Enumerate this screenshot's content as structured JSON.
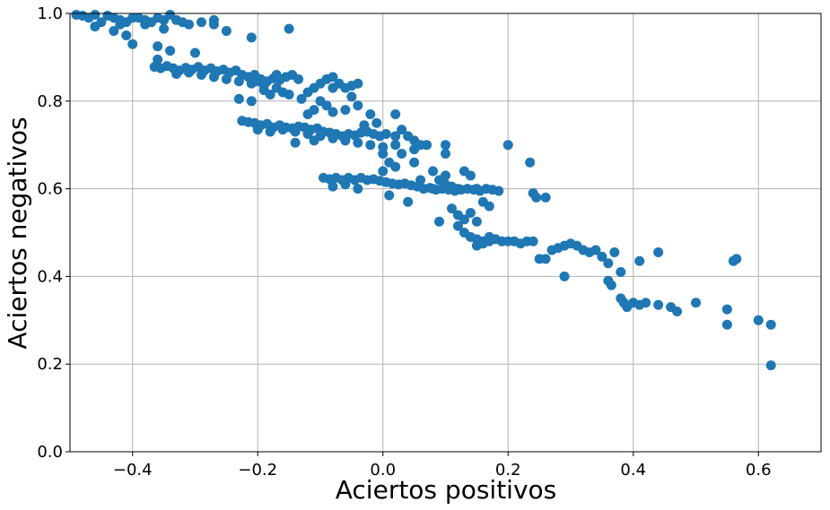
{
  "chart_data": {
    "type": "scatter",
    "title": "",
    "xlabel": "Aciertos positivos",
    "ylabel": "Aciertos negativos",
    "xlim": [
      -0.5,
      0.7
    ],
    "ylim": [
      0.0,
      1.0
    ],
    "grid": true,
    "x_ticks": [
      "−0.4",
      "−0.2",
      "0.0",
      "0.2",
      "0.4",
      "0.6"
    ],
    "y_ticks": [
      "0.0",
      "0.2",
      "0.4",
      "0.6",
      "0.8",
      "1.0"
    ],
    "x_tick_values": [
      -0.4,
      -0.2,
      0.0,
      0.2,
      0.4,
      0.6
    ],
    "y_tick_values": [
      0.0,
      0.2,
      0.4,
      0.6,
      0.8,
      1.0
    ],
    "marker_color": "#1f77b4",
    "series": [
      {
        "points": [
          [
            -0.49,
            0.997
          ],
          [
            -0.48,
            0.995
          ],
          [
            -0.47,
            0.99
          ],
          [
            -0.46,
            0.997
          ],
          [
            -0.45,
            0.98
          ],
          [
            -0.44,
            0.995
          ],
          [
            -0.43,
            0.99
          ],
          [
            -0.42,
            0.985
          ],
          [
            -0.41,
            0.98
          ],
          [
            -0.4,
            0.99
          ],
          [
            -0.39,
            0.99
          ],
          [
            -0.38,
            0.985
          ],
          [
            -0.37,
            0.98
          ],
          [
            -0.36,
            0.99
          ],
          [
            -0.35,
            0.985
          ],
          [
            -0.34,
            0.997
          ],
          [
            -0.33,
            0.985
          ],
          [
            -0.32,
            0.98
          ],
          [
            -0.46,
            0.97
          ],
          [
            -0.43,
            0.96
          ],
          [
            -0.42,
            0.975
          ],
          [
            -0.41,
            0.95
          ],
          [
            -0.4,
            0.93
          ],
          [
            -0.38,
            0.975
          ],
          [
            -0.35,
            0.965
          ],
          [
            -0.31,
            0.975
          ],
          [
            -0.29,
            0.98
          ],
          [
            -0.27,
            0.975
          ],
          [
            -0.25,
            0.96
          ],
          [
            -0.27,
            0.985
          ],
          [
            -0.21,
            0.945
          ],
          [
            -0.15,
            0.965
          ],
          [
            -0.36,
            0.925
          ],
          [
            -0.34,
            0.915
          ],
          [
            -0.3,
            0.91
          ],
          [
            -0.36,
            0.895
          ],
          [
            -0.365,
            0.878
          ],
          [
            -0.355,
            0.875
          ],
          [
            -0.345,
            0.88
          ],
          [
            -0.335,
            0.875
          ],
          [
            -0.325,
            0.87
          ],
          [
            -0.315,
            0.876
          ],
          [
            -0.305,
            0.872
          ],
          [
            -0.295,
            0.878
          ],
          [
            -0.285,
            0.87
          ],
          [
            -0.275,
            0.875
          ],
          [
            -0.265,
            0.868
          ],
          [
            -0.255,
            0.872
          ],
          [
            -0.245,
            0.865
          ],
          [
            -0.235,
            0.87
          ],
          [
            -0.225,
            0.86
          ],
          [
            -0.215,
            0.855
          ],
          [
            -0.205,
            0.86
          ],
          [
            -0.195,
            0.85
          ],
          [
            -0.185,
            0.845
          ],
          [
            -0.175,
            0.852
          ],
          [
            -0.165,
            0.848
          ],
          [
            -0.155,
            0.855
          ],
          [
            -0.145,
            0.86
          ],
          [
            -0.135,
            0.85
          ],
          [
            -0.33,
            0.862
          ],
          [
            -0.31,
            0.865
          ],
          [
            -0.29,
            0.86
          ],
          [
            -0.27,
            0.855
          ],
          [
            -0.25,
            0.85
          ],
          [
            -0.23,
            0.845
          ],
          [
            -0.21,
            0.84
          ],
          [
            -0.19,
            0.835
          ],
          [
            -0.17,
            0.83
          ],
          [
            -0.23,
            0.805
          ],
          [
            -0.21,
            0.8
          ],
          [
            -0.19,
            0.825
          ],
          [
            -0.18,
            0.815
          ],
          [
            -0.16,
            0.82
          ],
          [
            -0.15,
            0.815
          ],
          [
            -0.13,
            0.805
          ],
          [
            -0.12,
            0.82
          ],
          [
            -0.11,
            0.83
          ],
          [
            -0.1,
            0.84
          ],
          [
            -0.09,
            0.85
          ],
          [
            -0.08,
            0.855
          ],
          [
            -0.07,
            0.84
          ],
          [
            -0.06,
            0.83
          ],
          [
            -0.05,
            0.835
          ],
          [
            -0.04,
            0.84
          ],
          [
            -0.1,
            0.8
          ],
          [
            -0.09,
            0.79
          ],
          [
            -0.08,
            0.775
          ],
          [
            -0.06,
            0.78
          ],
          [
            -0.05,
            0.81
          ],
          [
            -0.04,
            0.79
          ],
          [
            -0.12,
            0.77
          ],
          [
            -0.11,
            0.78
          ],
          [
            -0.225,
            0.755
          ],
          [
            -0.215,
            0.752
          ],
          [
            -0.205,
            0.75
          ],
          [
            -0.195,
            0.745
          ],
          [
            -0.185,
            0.748
          ],
          [
            -0.175,
            0.74
          ],
          [
            -0.165,
            0.745
          ],
          [
            -0.155,
            0.74
          ],
          [
            -0.145,
            0.738
          ],
          [
            -0.135,
            0.742
          ],
          [
            -0.125,
            0.74
          ],
          [
            -0.115,
            0.735
          ],
          [
            -0.105,
            0.738
          ],
          [
            -0.095,
            0.73
          ],
          [
            -0.085,
            0.728
          ],
          [
            -0.075,
            0.725
          ],
          [
            -0.065,
            0.72
          ],
          [
            -0.055,
            0.725
          ],
          [
            -0.045,
            0.722
          ],
          [
            -0.035,
            0.728
          ],
          [
            -0.025,
            0.73
          ],
          [
            -0.015,
            0.725
          ],
          [
            -0.005,
            0.72
          ],
          [
            0.005,
            0.725
          ],
          [
            -0.2,
            0.735
          ],
          [
            -0.18,
            0.73
          ],
          [
            -0.16,
            0.735
          ],
          [
            -0.14,
            0.73
          ],
          [
            -0.12,
            0.725
          ],
          [
            -0.1,
            0.72
          ],
          [
            -0.08,
            0.715
          ],
          [
            -0.06,
            0.71
          ],
          [
            -0.04,
            0.705
          ],
          [
            -0.02,
            0.7
          ],
          [
            0.0,
            0.695
          ],
          [
            0.02,
            0.7
          ],
          [
            -0.14,
            0.705
          ],
          [
            -0.11,
            0.71
          ],
          [
            0.02,
            0.72
          ],
          [
            0.03,
            0.735
          ],
          [
            0.04,
            0.72
          ],
          [
            -0.03,
            0.745
          ],
          [
            -0.01,
            0.75
          ],
          [
            -0.02,
            0.77
          ],
          [
            0.02,
            0.77
          ],
          [
            0.05,
            0.71
          ],
          [
            0.06,
            0.7
          ],
          [
            0.05,
            0.69
          ],
          [
            0.07,
            0.7
          ],
          [
            0.1,
            0.7
          ],
          [
            0.0,
            0.68
          ],
          [
            0.01,
            0.66
          ],
          [
            0.0,
            0.64
          ],
          [
            0.02,
            0.65
          ],
          [
            0.03,
            0.68
          ],
          [
            0.05,
            0.66
          ],
          [
            0.06,
            0.62
          ],
          [
            0.08,
            0.64
          ],
          [
            0.1,
            0.63
          ],
          [
            0.08,
            0.6
          ],
          [
            0.09,
            0.62
          ],
          [
            0.1,
            0.61
          ],
          [
            0.11,
            0.605
          ],
          [
            0.12,
            0.6
          ],
          [
            0.13,
            0.64
          ],
          [
            0.14,
            0.63
          ],
          [
            0.15,
            0.6
          ],
          [
            0.1,
            0.68
          ],
          [
            -0.095,
            0.625
          ],
          [
            -0.085,
            0.622
          ],
          [
            -0.075,
            0.625
          ],
          [
            -0.065,
            0.62
          ],
          [
            -0.055,
            0.625
          ],
          [
            -0.045,
            0.62
          ],
          [
            -0.035,
            0.625
          ],
          [
            -0.025,
            0.62
          ],
          [
            -0.015,
            0.622
          ],
          [
            -0.005,
            0.618
          ],
          [
            0.005,
            0.615
          ],
          [
            0.015,
            0.612
          ],
          [
            0.025,
            0.61
          ],
          [
            0.035,
            0.612
          ],
          [
            0.045,
            0.608
          ],
          [
            0.055,
            0.605
          ],
          [
            0.065,
            0.6
          ],
          [
            0.075,
            0.602
          ],
          [
            0.085,
            0.598
          ],
          [
            0.095,
            0.6
          ],
          [
            0.105,
            0.598
          ],
          [
            0.115,
            0.595
          ],
          [
            0.125,
            0.598
          ],
          [
            0.135,
            0.6
          ],
          [
            0.145,
            0.598
          ],
          [
            0.155,
            0.595
          ],
          [
            0.165,
            0.6
          ],
          [
            0.175,
            0.598
          ],
          [
            0.185,
            0.595
          ],
          [
            -0.08,
            0.605
          ],
          [
            -0.06,
            0.61
          ],
          [
            -0.04,
            0.6
          ],
          [
            0.01,
            0.585
          ],
          [
            0.04,
            0.57
          ],
          [
            0.09,
            0.525
          ],
          [
            0.11,
            0.555
          ],
          [
            0.12,
            0.54
          ],
          [
            0.13,
            0.53
          ],
          [
            0.14,
            0.545
          ],
          [
            0.15,
            0.525
          ],
          [
            0.16,
            0.57
          ],
          [
            0.17,
            0.56
          ],
          [
            0.12,
            0.515
          ],
          [
            0.13,
            0.5
          ],
          [
            0.14,
            0.49
          ],
          [
            0.15,
            0.485
          ],
          [
            0.16,
            0.48
          ],
          [
            0.17,
            0.49
          ],
          [
            0.18,
            0.485
          ],
          [
            0.19,
            0.48
          ],
          [
            0.2,
            0.48
          ],
          [
            0.21,
            0.48
          ],
          [
            0.22,
            0.475
          ],
          [
            0.23,
            0.48
          ],
          [
            0.24,
            0.48
          ],
          [
            0.15,
            0.47
          ],
          [
            0.16,
            0.475
          ],
          [
            0.17,
            0.48
          ],
          [
            0.25,
            0.44
          ],
          [
            0.26,
            0.44
          ],
          [
            0.27,
            0.46
          ],
          [
            0.28,
            0.465
          ],
          [
            0.29,
            0.47
          ],
          [
            0.3,
            0.475
          ],
          [
            0.31,
            0.47
          ],
          [
            0.32,
            0.46
          ],
          [
            0.33,
            0.455
          ],
          [
            0.34,
            0.46
          ],
          [
            0.35,
            0.445
          ],
          [
            0.36,
            0.43
          ],
          [
            0.37,
            0.455
          ],
          [
            0.29,
            0.4
          ],
          [
            0.36,
            0.39
          ],
          [
            0.365,
            0.38
          ],
          [
            0.38,
            0.41
          ],
          [
            0.41,
            0.435
          ],
          [
            0.44,
            0.455
          ],
          [
            0.38,
            0.35
          ],
          [
            0.385,
            0.34
          ],
          [
            0.39,
            0.33
          ],
          [
            0.4,
            0.34
          ],
          [
            0.41,
            0.335
          ],
          [
            0.42,
            0.34
          ],
          [
            0.44,
            0.335
          ],
          [
            0.46,
            0.33
          ],
          [
            0.47,
            0.32
          ],
          [
            0.5,
            0.34
          ],
          [
            0.55,
            0.325
          ],
          [
            0.55,
            0.29
          ],
          [
            0.56,
            0.435
          ],
          [
            0.565,
            0.44
          ],
          [
            0.6,
            0.3
          ],
          [
            0.62,
            0.29
          ],
          [
            0.62,
            0.197
          ],
          [
            0.2,
            0.7
          ],
          [
            0.235,
            0.66
          ],
          [
            0.24,
            0.59
          ],
          [
            0.245,
            0.58
          ],
          [
            0.26,
            0.58
          ],
          [
            -0.2,
            0.845
          ],
          [
            -0.17,
            0.86
          ],
          [
            -0.08,
            0.83
          ]
        ]
      }
    ]
  }
}
